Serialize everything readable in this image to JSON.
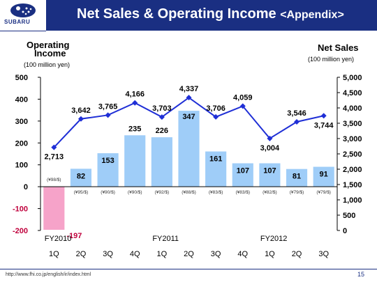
{
  "header": {
    "title": "Net Sales & Operating Income",
    "subtitle": "<Appendix>",
    "logo_text": "SUBARU"
  },
  "colors": {
    "header_bg": "#1a2f82",
    "bar_positive": "#9fcdf8",
    "bar_negative": "#f6a3c9",
    "line": "#1f2fd6",
    "negative_label": "#c0003c"
  },
  "left_axis": {
    "title_line1": "Operating",
    "title_line2": "Income",
    "unit": "(100 million yen)"
  },
  "right_axis": {
    "title": "Net Sales",
    "unit": "(100 million yen)"
  },
  "footer": {
    "url": "http://www.fhi.co.jp/english/ir/index.html",
    "page": "15"
  },
  "chart_data": {
    "type": "bar+line",
    "categories": [
      "1Q",
      "2Q",
      "3Q",
      "4Q",
      "1Q",
      "2Q",
      "3Q",
      "4Q",
      "1Q",
      "2Q",
      "3Q"
    ],
    "fiscal_years": [
      {
        "label": "FY2010",
        "start_index": 0
      },
      {
        "label": "FY2011",
        "start_index": 4
      },
      {
        "label": "FY2012",
        "start_index": 8
      }
    ],
    "operating_income": {
      "axis": "left",
      "values": [
        -197,
        82,
        153,
        235,
        226,
        347,
        161,
        107,
        107,
        81,
        91
      ],
      "labels": [
        "-197",
        "82",
        "153",
        "235",
        "226",
        "347",
        "161",
        "107",
        "107",
        "81",
        "91"
      ]
    },
    "net_sales": {
      "axis": "right",
      "values": [
        2713,
        3642,
        3765,
        4166,
        3703,
        4337,
        3706,
        4059,
        3004,
        3546,
        3744
      ],
      "labels": [
        "2,713",
        "3,642",
        "3,765",
        "4,166",
        "3,703",
        "4,337",
        "3,706",
        "4,059",
        "3,004",
        "3,546",
        "3,744"
      ]
    },
    "exchange_rates": [
      "(¥98/$)",
      "(¥95/$)",
      "(¥90/$)",
      "(¥90/$)",
      "(¥92/$)",
      "(¥88/$)",
      "(¥83/$)",
      "(¥83/$)",
      "(¥82/$)",
      "(¥79/$)",
      "(¥79/$)"
    ],
    "left_ylim": [
      -200,
      500
    ],
    "left_ticks": [
      -200,
      -100,
      0,
      100,
      200,
      300,
      400,
      500
    ],
    "left_tick_labels": [
      "-200",
      "-100",
      "0",
      "100",
      "200",
      "300",
      "400",
      "500"
    ],
    "right_ylim": [
      0,
      5000
    ],
    "right_ticks": [
      0,
      500,
      1000,
      1500,
      2000,
      2500,
      3000,
      3500,
      4000,
      4500,
      5000
    ],
    "right_tick_labels": [
      "0",
      "500",
      "1,000",
      "1,500",
      "2,000",
      "2,500",
      "3,000",
      "3,500",
      "4,000",
      "4,500",
      "5,000"
    ],
    "grid": false
  }
}
